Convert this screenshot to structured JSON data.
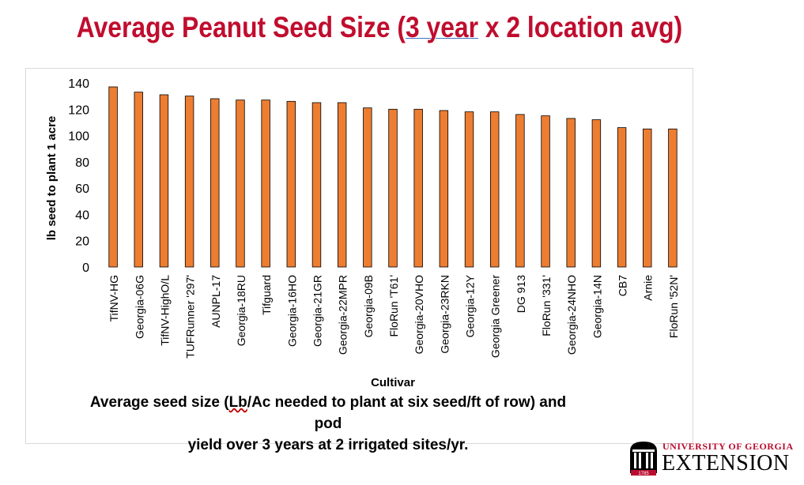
{
  "title": {
    "before": "Average Peanut Seed Size (",
    "underlined": "3 year",
    "after": " x 2 location avg)"
  },
  "caption": {
    "part1": "Average seed size (",
    "part2": "Lb",
    "part3": "/Ac needed to plant at six seed/ft of row) and pod",
    "line2": "yield over 3 years at 2 irrigated sites/yr."
  },
  "logo": {
    "line1": "UNIVERSITY OF GEORGIA",
    "line2": "EXTENSION",
    "seal_year": "1785"
  },
  "colors": {
    "title": "#c00d2e",
    "bar_fill": "#ed7d31",
    "bar_stroke": "#000000",
    "logo_red": "#ba0c2f"
  },
  "chart_data": {
    "type": "bar",
    "xlabel": "Cultivar",
    "ylabel": "lb seed to plant 1 acre",
    "ylim": [
      0,
      140
    ],
    "yticks": [
      0,
      20,
      40,
      60,
      80,
      100,
      120,
      140
    ],
    "grid": false,
    "legend": "none",
    "categories": [
      "TifNV-HG",
      "Georgia-06G",
      "TifNV-HighO/L",
      "TUFRunner '297'",
      "AUNPL-17",
      "Georgia-18RU",
      "Tifguard",
      "Georgia-16HO",
      "Georgia-21GR",
      "Georgia-22MPR",
      "Georgia-09B",
      "FloRun 'T61'",
      "Georgia-20VHO",
      "Georgia-23RKN",
      "Georgia-12Y",
      "Georgia Greener",
      "DG 913",
      "FloRun '331'",
      "Georgia-24NHO",
      "Georgia-14N",
      "CB7",
      "Arnie",
      "FloRun '52N'"
    ],
    "values": [
      137,
      133,
      131,
      130,
      128,
      127,
      127,
      126,
      125,
      125,
      121,
      120,
      120,
      119,
      118,
      118,
      116,
      115,
      113,
      112,
      106,
      105,
      105
    ]
  }
}
